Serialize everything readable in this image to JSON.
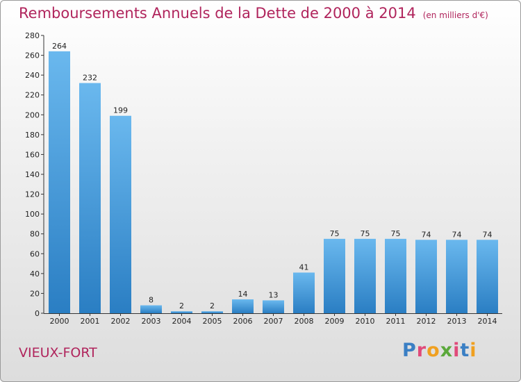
{
  "header": {
    "title": "Remboursements Annuels de la Dette de 2000 à 2014",
    "unit": "(en milliers d'€)"
  },
  "footer": {
    "commune": "VIEUX-FORT",
    "logo_text": "Proxiti"
  },
  "colors": {
    "title": "#b0245c",
    "bar_light": "#6ab8ee",
    "bar_dark": "#2a7ec3"
  },
  "chart_data": {
    "type": "bar",
    "title": "Remboursements Annuels de la Dette de 2000 à 2014",
    "xlabel": "",
    "ylabel": "",
    "categories": [
      "2000",
      "2001",
      "2002",
      "2003",
      "2004",
      "2005",
      "2006",
      "2007",
      "2008",
      "2009",
      "2010",
      "2011",
      "2012",
      "2013",
      "2014"
    ],
    "values": [
      264,
      232,
      199,
      8,
      2,
      2,
      14,
      13,
      41,
      75,
      75,
      75,
      74,
      74,
      74
    ],
    "ylim": [
      0,
      280
    ],
    "yticks": [
      0,
      20,
      40,
      60,
      80,
      100,
      120,
      140,
      160,
      180,
      200,
      220,
      240,
      260,
      280
    ],
    "grid": false,
    "data_labels": true
  }
}
